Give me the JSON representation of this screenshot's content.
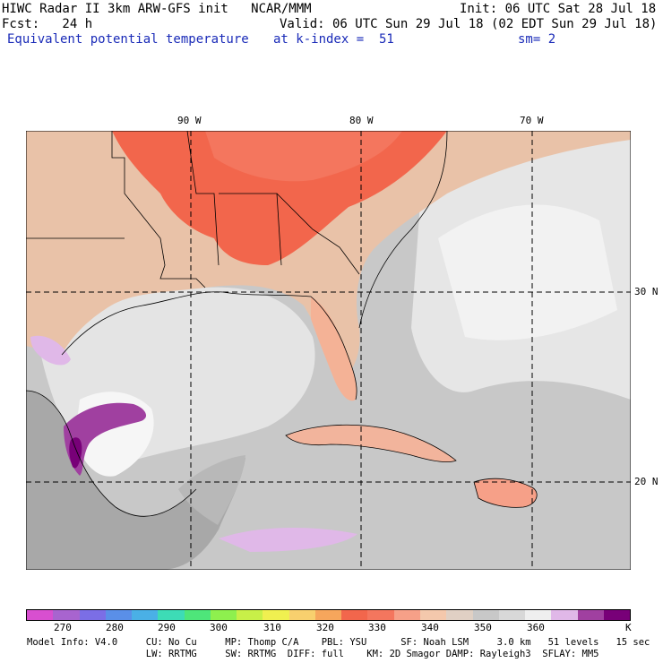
{
  "header": {
    "title": "HIWC Radar II 3km ARW-GFS init   NCAR/MMM",
    "init": "Init: 06 UTC Sat 28 Jul 18",
    "forecast": "Fcst:   24 h",
    "valid": "Valid: 06 UTC Sun 29 Jul 18 (02 EDT Sun 29 Jul 18)",
    "field": "Equivalent potential temperature",
    "level": "at k-index =  51",
    "smoothing": "sm= 2"
  },
  "map": {
    "lon_labels": [
      "90 W",
      "80 W",
      "70 W"
    ],
    "lat_labels": [
      "30 N",
      "20 N"
    ]
  },
  "colorbar": {
    "colors": [
      "#d84fd0",
      "#a864cf",
      "#7b6ee6",
      "#5a8fe8",
      "#4ab0e6",
      "#3ddcb6",
      "#4ee67a",
      "#8ef04e",
      "#c8f048",
      "#f0f050",
      "#f8d06e",
      "#f6a65c",
      "#f2664c",
      "#f4765e",
      "#f6a088",
      "#f4c8ac",
      "#e0d0c4",
      "#c8c8c8",
      "#d8d8d8",
      "#efefef",
      "#e0b8e8",
      "#a040a0",
      "#780078"
    ],
    "ticks": [
      "270",
      "280",
      "290",
      "300",
      "310",
      "320",
      "330",
      "340",
      "350",
      "360"
    ],
    "unit": "K"
  },
  "footer": {
    "line1": "Model Info: V4.0     CU: No Cu     MP: Thomp C/A    PBL: YSU      SF: Noah LSM     3.0 km   51 levels   15 sec",
    "line2": "                     LW: RRTMG     SW: RRTMG  DIFF: full    KM: 2D Smagor DAMP: Rayleigh3  SFLAY: MM5"
  }
}
